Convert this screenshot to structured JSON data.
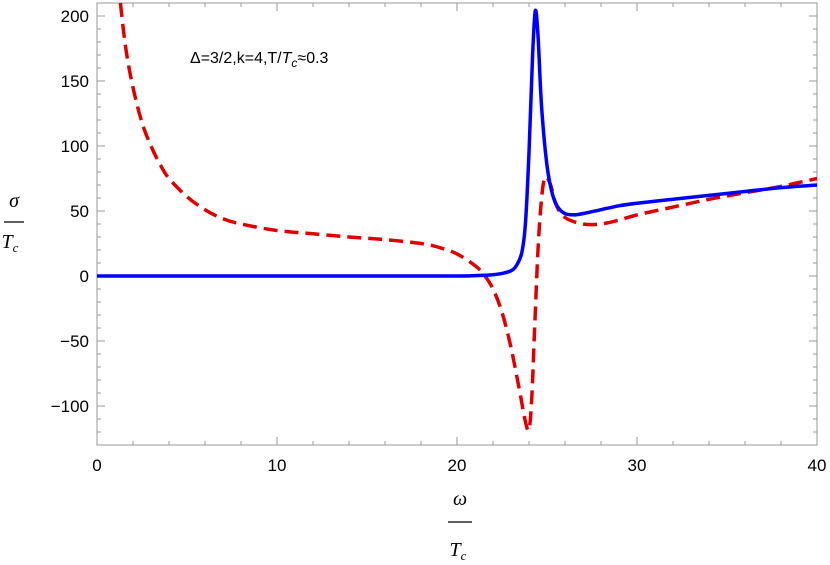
{
  "chart_data": {
    "type": "line",
    "xlim": [
      0,
      40
    ],
    "ylim": [
      -130,
      210
    ],
    "x_ticks": [
      0,
      10,
      20,
      30,
      40
    ],
    "y_ticks": [
      -100,
      -50,
      0,
      50,
      100,
      150,
      200
    ],
    "x_tick_labels": [
      "0",
      "10",
      "20",
      "30",
      "40"
    ],
    "y_tick_labels": [
      "−100",
      "−50",
      "0",
      "50",
      "100",
      "150",
      "200"
    ],
    "xlabel": {
      "numerator": "ω",
      "denominator": "T",
      "subscript": "c"
    },
    "ylabel": {
      "numerator": "σ",
      "denominator": "T",
      "subscript": "c"
    },
    "annotation": {
      "prefix": "Δ=3/2,k=4,T/",
      "T": "T",
      "sub": "c",
      "suffix": "≈0.3"
    },
    "grid": false,
    "frame": true,
    "series": [
      {
        "color": "#0000ff",
        "style": "solid",
        "x": [
          0,
          5,
          10,
          15,
          20,
          21,
          22,
          22.5,
          23,
          23.3,
          23.6,
          23.8,
          24.0,
          24.2,
          24.35,
          24.5,
          24.7,
          25.0,
          25.3,
          25.6,
          26.0,
          26.5,
          27,
          28,
          29,
          30,
          32,
          34,
          36,
          38,
          40
        ],
        "y": [
          0,
          0,
          0,
          0,
          0,
          0.3,
          1,
          2,
          4,
          8,
          18,
          40,
          95,
          170,
          204,
          185,
          130,
          85,
          63,
          53,
          48,
          47,
          48,
          51,
          54,
          56,
          59,
          62,
          65,
          68,
          70
        ]
      },
      {
        "color": "#e00000",
        "style": "dashed",
        "x": [
          1.3,
          1.6,
          2,
          2.5,
          3,
          3.5,
          4,
          5,
          6,
          7,
          8,
          10,
          12,
          14,
          16,
          18,
          19,
          20,
          21,
          21.5,
          22,
          22.5,
          23,
          23.5,
          23.8,
          24.0,
          24.15,
          24.3,
          24.5,
          24.7,
          24.9,
          25.2,
          25.5,
          26,
          27,
          28,
          29,
          30,
          32,
          34,
          36,
          38,
          40
        ],
        "y": [
          210,
          175,
          145,
          118,
          100,
          86,
          75,
          61,
          51,
          44,
          40,
          35,
          32.5,
          30,
          28,
          25,
          22,
          17,
          8,
          1,
          -10,
          -28,
          -55,
          -90,
          -112,
          -118,
          -95,
          -45,
          20,
          60,
          76,
          70,
          55,
          45,
          40,
          40,
          43,
          47,
          53,
          59,
          64,
          69,
          75
        ]
      }
    ]
  }
}
